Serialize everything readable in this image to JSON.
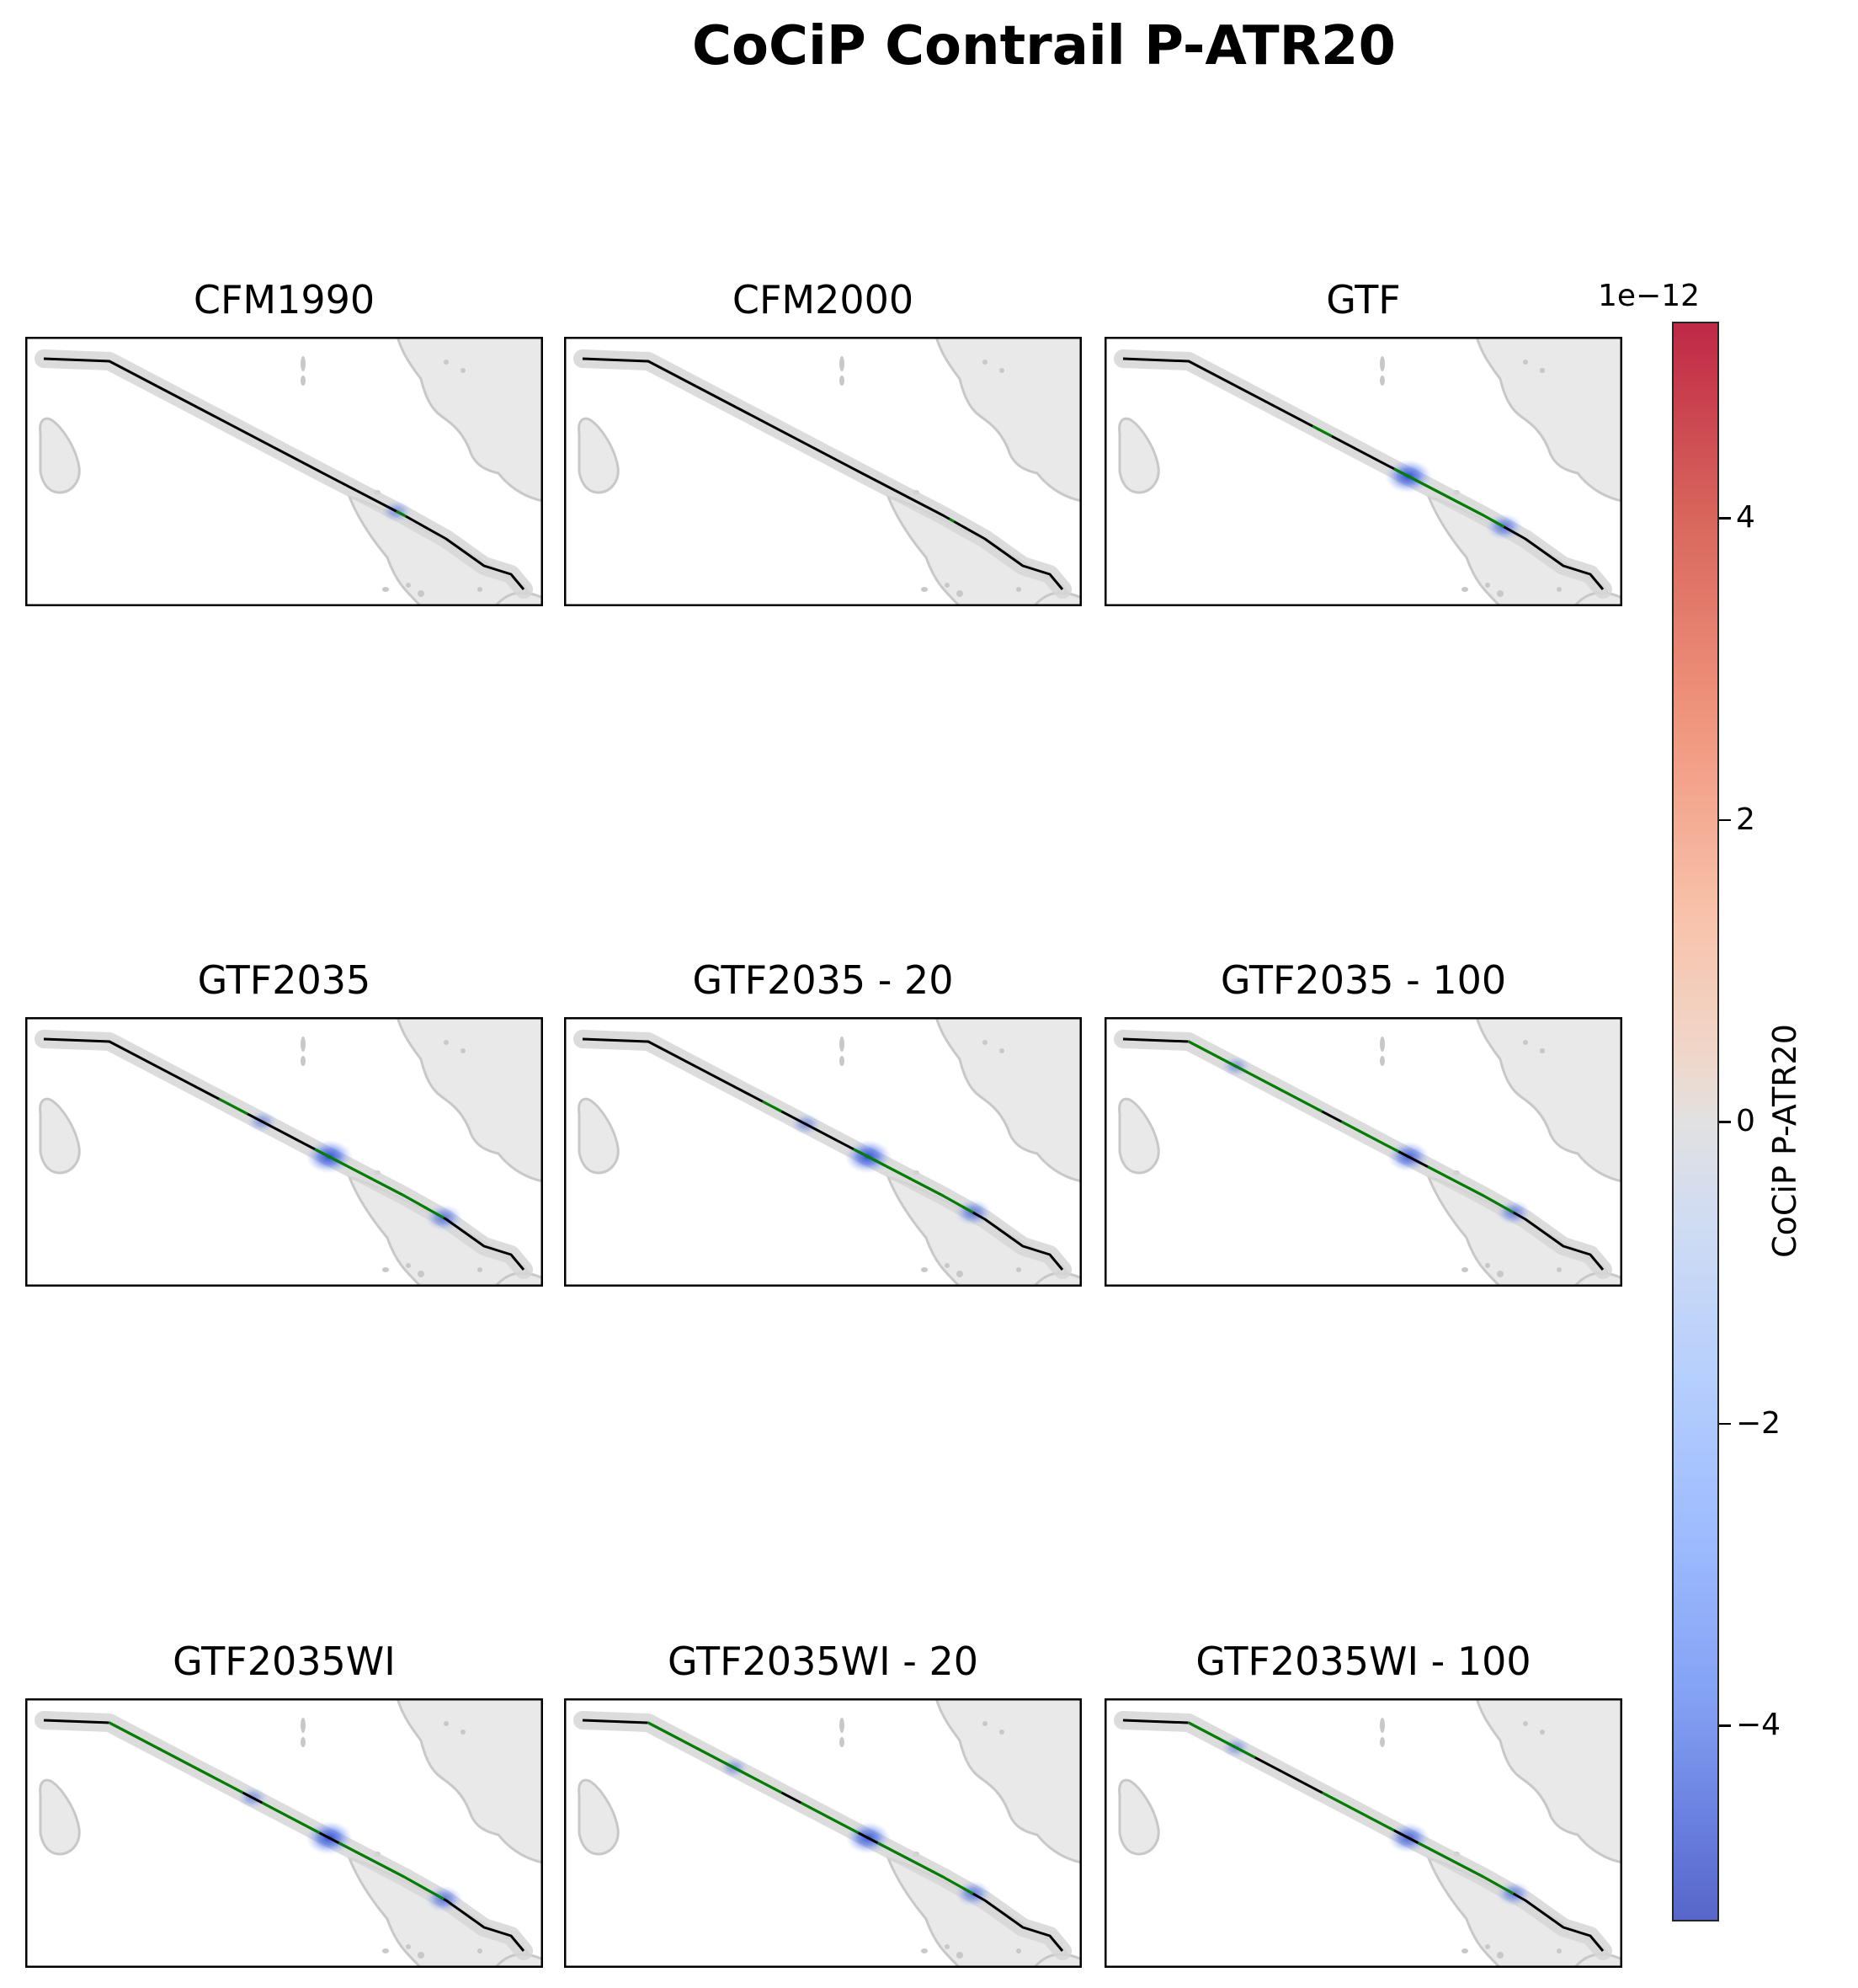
{
  "title": "CoCiP Contrail P-ATR20",
  "colorbar": {
    "label": "CoCiP P-ATR20",
    "exponent": "1e−12",
    "ticks": [
      "4",
      "2",
      "0",
      "−2",
      "−4"
    ],
    "tick_values": [
      4,
      2,
      0,
      -2,
      -4
    ],
    "range": [
      -5.3,
      5.3
    ],
    "colormap": "coolwarm"
  },
  "colors": {
    "flight_path": "#000000",
    "contrail_segment": "#008000",
    "land": "#e9e9e9",
    "coastline": "#c8c8c8",
    "contrail_halo": "#d6d6d6",
    "negative_forcing": "#3b5bdb"
  },
  "panels": [
    {
      "title": "CFM1990",
      "green_segments": [
        [
          0.72,
          0.74
        ]
      ],
      "blue_spots": [
        {
          "t": 0.72,
          "strength": 0.3
        }
      ]
    },
    {
      "title": "CFM2000",
      "green_segments": [
        [
          0.75,
          0.76
        ]
      ],
      "blue_spots": []
    },
    {
      "title": "GTF",
      "green_segments": [
        [
          0.38,
          0.42
        ],
        [
          0.55,
          0.78
        ]
      ],
      "blue_spots": [
        {
          "t": 0.58,
          "strength": 1.0
        },
        {
          "t": 0.78,
          "strength": 0.6
        }
      ]
    },
    {
      "title": "GTF2035",
      "green_segments": [
        [
          0.35,
          0.41
        ],
        [
          0.55,
          0.82
        ]
      ],
      "blue_spots": [
        {
          "t": 0.58,
          "strength": 1.0
        },
        {
          "t": 0.82,
          "strength": 0.6
        },
        {
          "t": 0.44,
          "strength": 0.3
        }
      ]
    },
    {
      "title": "GTF2035 - 20",
      "green_segments": [
        [
          0.36,
          0.4
        ],
        [
          0.55,
          0.8
        ]
      ],
      "blue_spots": [
        {
          "t": 0.58,
          "strength": 1.0
        },
        {
          "t": 0.8,
          "strength": 0.6
        },
        {
          "t": 0.45,
          "strength": 0.3
        }
      ]
    },
    {
      "title": "GTF2035 - 100",
      "green_segments": [
        [
          0.12,
          0.4
        ],
        [
          0.44,
          0.56
        ],
        [
          0.62,
          0.8
        ]
      ],
      "blue_spots": [
        {
          "t": 0.58,
          "strength": 0.8
        },
        {
          "t": 0.8,
          "strength": 0.5
        },
        {
          "t": 0.22,
          "strength": 0.25
        }
      ]
    },
    {
      "title": "GTF2035WI",
      "green_segments": [
        [
          0.12,
          0.4
        ],
        [
          0.44,
          0.56
        ],
        [
          0.6,
          0.82
        ]
      ],
      "blue_spots": [
        {
          "t": 0.58,
          "strength": 1.0
        },
        {
          "t": 0.82,
          "strength": 0.6
        },
        {
          "t": 0.42,
          "strength": 0.3
        }
      ]
    },
    {
      "title": "GTF2035WI - 20",
      "green_segments": [
        [
          0.12,
          0.4
        ],
        [
          0.44,
          0.56
        ],
        [
          0.6,
          0.8
        ]
      ],
      "blue_spots": [
        {
          "t": 0.58,
          "strength": 0.9
        },
        {
          "t": 0.8,
          "strength": 0.55
        },
        {
          "t": 0.3,
          "strength": 0.25
        }
      ]
    },
    {
      "title": "GTF2035WI - 100",
      "green_segments": [
        [
          0.12,
          0.26
        ],
        [
          0.4,
          0.55
        ],
        [
          0.6,
          0.8
        ]
      ],
      "blue_spots": [
        {
          "t": 0.58,
          "strength": 0.8
        },
        {
          "t": 0.8,
          "strength": 0.5
        },
        {
          "t": 0.22,
          "strength": 0.25
        }
      ]
    }
  ]
}
